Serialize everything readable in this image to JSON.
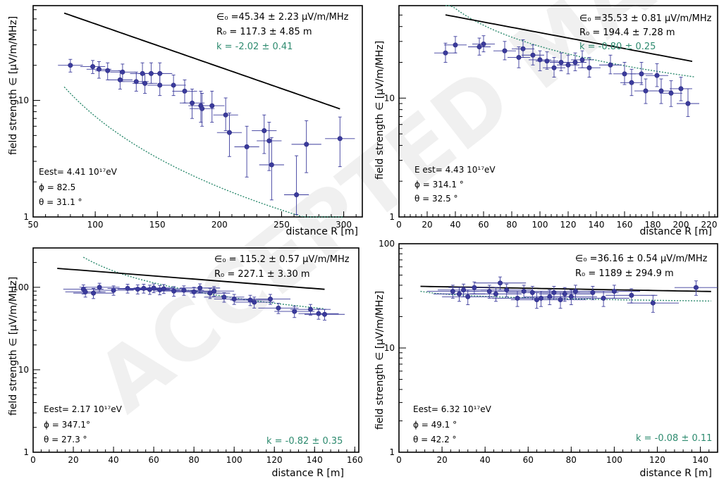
{
  "colors": {
    "points": "#3b3b9c",
    "fit": "#000000",
    "alt_fit": "#2e8b6f",
    "k_text": "#2e8b6f"
  },
  "watermark": "ACCEPTED MANUSCRIPT",
  "chart_data": [
    {
      "type": "scatter",
      "xlabel": "distance R [m]",
      "ylabel": "field strength  ∈ [µV/m/MHz]",
      "xlim": [
        50,
        315
      ],
      "ylim": [
        1,
        65
      ],
      "y_scale": "log",
      "xticks": [
        50,
        100,
        150,
        200,
        250,
        300
      ],
      "yticks": [
        1,
        10
      ],
      "legend": "none",
      "annotations": {
        "eps": "∈₀ =45.34  ± 2.23 µV/m/MHz",
        "r0": "R₀ = 117.3  ± 4.85 m",
        "k": "k =  -2.02 ± 0.41",
        "energy": "Eest= 4.41 10¹⁷eV",
        "phi": "ϕ   = 82.5",
        "theta": "θ   = 31.1 °"
      },
      "points": [
        {
          "x": 80,
          "y": 20,
          "xerr": 10,
          "ylo": 2.5,
          "yhi": 2.5
        },
        {
          "x": 98,
          "y": 19.5,
          "xerr": 10,
          "ylo": 2.5,
          "yhi": 2.5
        },
        {
          "x": 103,
          "y": 18.5,
          "xerr": 10,
          "ylo": 3,
          "yhi": 3
        },
        {
          "x": 110,
          "y": 18,
          "xerr": 10,
          "ylo": 3,
          "yhi": 3
        },
        {
          "x": 122,
          "y": 17.5,
          "xerr": 10,
          "ylo": 3,
          "yhi": 3
        },
        {
          "x": 120,
          "y": 15,
          "xerr": 10,
          "ylo": 2.5,
          "yhi": 3
        },
        {
          "x": 133,
          "y": 14.5,
          "xerr": 10,
          "ylo": 2.5,
          "yhi": 3
        },
        {
          "x": 138,
          "y": 17,
          "xerr": 10,
          "ylo": 3,
          "yhi": 4
        },
        {
          "x": 140,
          "y": 14,
          "xerr": 10,
          "ylo": 2.5,
          "yhi": 3
        },
        {
          "x": 145,
          "y": 17,
          "xerr": 10,
          "ylo": 3,
          "yhi": 4
        },
        {
          "x": 152,
          "y": 17,
          "xerr": 10,
          "ylo": 3,
          "yhi": 4
        },
        {
          "x": 152,
          "y": 13.5,
          "xerr": 10,
          "ylo": 2.5,
          "yhi": 3
        },
        {
          "x": 163,
          "y": 13.5,
          "xerr": 10,
          "ylo": 2.5,
          "yhi": 3
        },
        {
          "x": 172,
          "y": 12,
          "xerr": 10,
          "ylo": 2.5,
          "yhi": 3
        },
        {
          "x": 178,
          "y": 9.5,
          "xerr": 10,
          "ylo": 2.5,
          "yhi": 3
        },
        {
          "x": 185,
          "y": 9,
          "xerr": 10,
          "ylo": 2.5,
          "yhi": 3
        },
        {
          "x": 186,
          "y": 8.5,
          "xerr": 10,
          "ylo": 2.5,
          "yhi": 3
        },
        {
          "x": 194,
          "y": 9,
          "xerr": 10,
          "ylo": 2.5,
          "yhi": 3
        },
        {
          "x": 205,
          "y": 7.5,
          "xerr": 10,
          "ylo": 2,
          "yhi": 3
        },
        {
          "x": 208,
          "y": 5.3,
          "xerr": 10,
          "ylo": 2,
          "yhi": 2.5
        },
        {
          "x": 222,
          "y": 4,
          "xerr": 10,
          "ylo": 1.8,
          "yhi": 2
        },
        {
          "x": 236,
          "y": 5.5,
          "xerr": 10,
          "ylo": 2,
          "yhi": 2
        },
        {
          "x": 240,
          "y": 4.5,
          "xerr": 10,
          "ylo": 2,
          "yhi": 2
        },
        {
          "x": 242,
          "y": 2.8,
          "xerr": 10,
          "ylo": 1.4,
          "yhi": 2
        },
        {
          "x": 262,
          "y": 1.55,
          "xerr": 10,
          "ylo": 0.5,
          "yhi": 1.8
        },
        {
          "x": 270,
          "y": 4.2,
          "xerr": 12,
          "ylo": 1.8,
          "yhi": 2.5
        },
        {
          "x": 297,
          "y": 4.7,
          "xerr": 12,
          "ylo": 2,
          "yhi": 2.5
        }
      ],
      "fit": {
        "eps0": 45.34,
        "r0": 117.3,
        "x_from": 75,
        "x_to": 297
      },
      "alt_fit": {
        "a": 80000,
        "k": -2.02,
        "x_from": 75,
        "x_to": 300
      }
    },
    {
      "type": "scatter",
      "xlabel": "distance R [m]",
      "ylabel": "field strength  ∈ [µV/m/MHz]",
      "xlim": [
        0,
        226
      ],
      "ylim": [
        1,
        60
      ],
      "y_scale": "log",
      "xticks": [
        0,
        20,
        40,
        60,
        80,
        100,
        120,
        140,
        160,
        180,
        200,
        220
      ],
      "yticks": [
        1,
        10
      ],
      "legend": "none",
      "annotations": {
        "eps": "∈₀ =35.53  ± 0.81 µV/m/MHz",
        "r0": "R₀ = 194.4  ± 7.28 m",
        "k": "k =  -0.80 ± 0.25",
        "energy": "E est= 4.43 10¹⁷eV",
        "phi": "ϕ   = 314.1 °",
        "theta": "θ   = 32.5 °"
      },
      "points": [
        {
          "x": 33,
          "y": 24,
          "xerr": 8,
          "ylo": 4,
          "yhi": 5
        },
        {
          "x": 40,
          "y": 28,
          "xerr": 8,
          "ylo": 4,
          "yhi": 5
        },
        {
          "x": 57,
          "y": 27,
          "xerr": 8,
          "ylo": 4,
          "yhi": 5
        },
        {
          "x": 60,
          "y": 28.5,
          "xerr": 8,
          "ylo": 4,
          "yhi": 5
        },
        {
          "x": 75,
          "y": 25,
          "xerr": 8,
          "ylo": 4,
          "yhi": 5
        },
        {
          "x": 85,
          "y": 22,
          "xerr": 8,
          "ylo": 4,
          "yhi": 5
        },
        {
          "x": 88,
          "y": 26,
          "xerr": 8,
          "ylo": 4,
          "yhi": 5
        },
        {
          "x": 95,
          "y": 23,
          "xerr": 8,
          "ylo": 4,
          "yhi": 5
        },
        {
          "x": 100,
          "y": 21,
          "xerr": 8,
          "ylo": 4,
          "yhi": 4
        },
        {
          "x": 105,
          "y": 20.5,
          "xerr": 8,
          "ylo": 3,
          "yhi": 4
        },
        {
          "x": 110,
          "y": 18,
          "xerr": 8,
          "ylo": 3,
          "yhi": 4
        },
        {
          "x": 115,
          "y": 20,
          "xerr": 8,
          "ylo": 3,
          "yhi": 4
        },
        {
          "x": 120,
          "y": 19,
          "xerr": 8,
          "ylo": 3,
          "yhi": 4
        },
        {
          "x": 125,
          "y": 20,
          "xerr": 8,
          "ylo": 3,
          "yhi": 4
        },
        {
          "x": 130,
          "y": 21,
          "xerr": 8,
          "ylo": 3,
          "yhi": 4
        },
        {
          "x": 135,
          "y": 18,
          "xerr": 8,
          "ylo": 3,
          "yhi": 4
        },
        {
          "x": 150,
          "y": 19,
          "xerr": 8,
          "ylo": 3,
          "yhi": 4
        },
        {
          "x": 160,
          "y": 16,
          "xerr": 8,
          "ylo": 3,
          "yhi": 4
        },
        {
          "x": 165,
          "y": 13.5,
          "xerr": 8,
          "ylo": 3,
          "yhi": 4
        },
        {
          "x": 172,
          "y": 16,
          "xerr": 8,
          "ylo": 3,
          "yhi": 4
        },
        {
          "x": 175,
          "y": 11.5,
          "xerr": 8,
          "ylo": 2.5,
          "yhi": 3
        },
        {
          "x": 183,
          "y": 15.5,
          "xerr": 8,
          "ylo": 3,
          "yhi": 4
        },
        {
          "x": 186,
          "y": 11.5,
          "xerr": 8,
          "ylo": 2.5,
          "yhi": 3
        },
        {
          "x": 193,
          "y": 11,
          "xerr": 8,
          "ylo": 2.5,
          "yhi": 3
        },
        {
          "x": 200,
          "y": 12,
          "xerr": 8,
          "ylo": 2.5,
          "yhi": 3
        },
        {
          "x": 205,
          "y": 9,
          "xerr": 8,
          "ylo": 2,
          "yhi": 3
        }
      ],
      "fit": {
        "eps0": 35.53,
        "r0": 194.4,
        "x_from": 33,
        "x_to": 208
      },
      "alt_fit": {
        "a": 1085,
        "k": -0.8,
        "x_from": 33,
        "x_to": 210
      }
    },
    {
      "type": "scatter",
      "xlabel": "distance R [m]",
      "ylabel": "field strength  ∈ [µV/m/MHz]",
      "xlim": [
        0,
        162
      ],
      "ylim": [
        1,
        300
      ],
      "y_scale": "log",
      "xticks": [
        0,
        20,
        40,
        60,
        80,
        100,
        120,
        140,
        160
      ],
      "yticks": [
        1,
        10,
        100
      ],
      "legend": "none",
      "annotations": {
        "eps": "∈₀ = 115.2  ± 0.57 µV/m/MHz",
        "r0": "R₀ = 227.1  ± 3.30 m",
        "k": "k =  -0.82 ± 0.35",
        "energy": "Eest= 2.17 10¹⁷eV",
        "phi": "ϕ   = 347.1°",
        "theta": "θ   = 27.3 °"
      },
      "points": [
        {
          "x": 25,
          "y": 95,
          "xerr": 10,
          "ylo": 12,
          "yhi": 12
        },
        {
          "x": 26,
          "y": 88,
          "xerr": 10,
          "ylo": 12,
          "yhi": 12
        },
        {
          "x": 30,
          "y": 85,
          "xerr": 10,
          "ylo": 12,
          "yhi": 12
        },
        {
          "x": 33,
          "y": 100,
          "xerr": 10,
          "ylo": 12,
          "yhi": 12
        },
        {
          "x": 40,
          "y": 92,
          "xerr": 10,
          "ylo": 12,
          "yhi": 12
        },
        {
          "x": 47,
          "y": 97,
          "xerr": 10,
          "ylo": 12,
          "yhi": 12
        },
        {
          "x": 52,
          "y": 95,
          "xerr": 10,
          "ylo": 12,
          "yhi": 12
        },
        {
          "x": 55,
          "y": 97,
          "xerr": 10,
          "ylo": 12,
          "yhi": 12
        },
        {
          "x": 58,
          "y": 94,
          "xerr": 10,
          "ylo": 12,
          "yhi": 12
        },
        {
          "x": 60,
          "y": 98,
          "xerr": 10,
          "ylo": 12,
          "yhi": 12
        },
        {
          "x": 63,
          "y": 93,
          "xerr": 10,
          "ylo": 12,
          "yhi": 12
        },
        {
          "x": 65,
          "y": 96,
          "xerr": 10,
          "ylo": 12,
          "yhi": 12
        },
        {
          "x": 70,
          "y": 90,
          "xerr": 10,
          "ylo": 12,
          "yhi": 12
        },
        {
          "x": 75,
          "y": 92,
          "xerr": 10,
          "ylo": 12,
          "yhi": 12
        },
        {
          "x": 80,
          "y": 88,
          "xerr": 10,
          "ylo": 12,
          "yhi": 12
        },
        {
          "x": 83,
          "y": 98,
          "xerr": 10,
          "ylo": 12,
          "yhi": 12
        },
        {
          "x": 88,
          "y": 85,
          "xerr": 10,
          "ylo": 12,
          "yhi": 12
        },
        {
          "x": 90,
          "y": 90,
          "xerr": 10,
          "ylo": 12,
          "yhi": 12
        },
        {
          "x": 95,
          "y": 76,
          "xerr": 10,
          "ylo": 10,
          "yhi": 10
        },
        {
          "x": 100,
          "y": 72,
          "xerr": 10,
          "ylo": 10,
          "yhi": 10
        },
        {
          "x": 108,
          "y": 70,
          "xerr": 10,
          "ylo": 10,
          "yhi": 10
        },
        {
          "x": 110,
          "y": 66,
          "xerr": 10,
          "ylo": 10,
          "yhi": 10
        },
        {
          "x": 118,
          "y": 72,
          "xerr": 10,
          "ylo": 10,
          "yhi": 10
        },
        {
          "x": 122,
          "y": 56,
          "xerr": 10,
          "ylo": 8,
          "yhi": 8
        },
        {
          "x": 130,
          "y": 51,
          "xerr": 10,
          "ylo": 8,
          "yhi": 8
        },
        {
          "x": 138,
          "y": 54,
          "xerr": 10,
          "ylo": 8,
          "yhi": 8
        },
        {
          "x": 142,
          "y": 48,
          "xerr": 10,
          "ylo": 7,
          "yhi": 7
        },
        {
          "x": 145,
          "y": 47,
          "xerr": 10,
          "ylo": 7,
          "yhi": 7
        }
      ],
      "fit": {
        "eps0": 115.2,
        "r0": 227.1,
        "x_from": 12,
        "x_to": 145
      },
      "alt_fit": {
        "a": 3250,
        "k": -0.82,
        "x_from": 25,
        "x_to": 145
      }
    },
    {
      "type": "scatter",
      "xlabel": "distance R [m]",
      "ylabel": "field strength  ∈ [µV/m/MHz]",
      "xlim": [
        0,
        148
      ],
      "ylim": [
        1,
        100
      ],
      "y_scale": "log",
      "xticks": [
        0,
        20,
        40,
        60,
        80,
        100,
        120,
        140
      ],
      "yticks": [
        1,
        10,
        100
      ],
      "legend": "none",
      "annotations": {
        "eps": "∈₀ =36.16  ± 0.54 µV/m/MHz",
        "r0": "R₀ = 1189   ± 294.9 m",
        "k": "k =  -0.08 ± 0.11",
        "energy": "Eest= 6.32 10¹⁷eV",
        "phi": "ϕ   = 49.1 °",
        "theta": "θ   = 42.2 °"
      },
      "points": [
        {
          "x": 25,
          "y": 35,
          "xerr": 12,
          "ylo": 5,
          "yhi": 5
        },
        {
          "x": 28,
          "y": 33,
          "xerr": 12,
          "ylo": 5,
          "yhi": 5
        },
        {
          "x": 30,
          "y": 36,
          "xerr": 12,
          "ylo": 5,
          "yhi": 5
        },
        {
          "x": 32,
          "y": 31,
          "xerr": 12,
          "ylo": 5,
          "yhi": 5
        },
        {
          "x": 35,
          "y": 38,
          "xerr": 12,
          "ylo": 5,
          "yhi": 5
        },
        {
          "x": 42,
          "y": 35,
          "xerr": 12,
          "ylo": 5,
          "yhi": 5
        },
        {
          "x": 45,
          "y": 33,
          "xerr": 12,
          "ylo": 5,
          "yhi": 5
        },
        {
          "x": 47,
          "y": 42,
          "xerr": 12,
          "ylo": 6,
          "yhi": 6
        },
        {
          "x": 50,
          "y": 36,
          "xerr": 12,
          "ylo": 5,
          "yhi": 5
        },
        {
          "x": 55,
          "y": 30,
          "xerr": 12,
          "ylo": 5,
          "yhi": 5
        },
        {
          "x": 58,
          "y": 35,
          "xerr": 12,
          "ylo": 5,
          "yhi": 5
        },
        {
          "x": 62,
          "y": 34,
          "xerr": 12,
          "ylo": 5,
          "yhi": 5
        },
        {
          "x": 64,
          "y": 29,
          "xerr": 12,
          "ylo": 5,
          "yhi": 5
        },
        {
          "x": 66,
          "y": 30,
          "xerr": 12,
          "ylo": 5,
          "yhi": 5
        },
        {
          "x": 70,
          "y": 31,
          "xerr": 12,
          "ylo": 5,
          "yhi": 5
        },
        {
          "x": 72,
          "y": 34,
          "xerr": 12,
          "ylo": 5,
          "yhi": 5
        },
        {
          "x": 75,
          "y": 29,
          "xerr": 12,
          "ylo": 5,
          "yhi": 5
        },
        {
          "x": 77,
          "y": 33,
          "xerr": 12,
          "ylo": 5,
          "yhi": 5
        },
        {
          "x": 80,
          "y": 31,
          "xerr": 12,
          "ylo": 5,
          "yhi": 5
        },
        {
          "x": 82,
          "y": 35,
          "xerr": 12,
          "ylo": 5,
          "yhi": 5
        },
        {
          "x": 90,
          "y": 34,
          "xerr": 12,
          "ylo": 5,
          "yhi": 5
        },
        {
          "x": 95,
          "y": 30,
          "xerr": 12,
          "ylo": 5,
          "yhi": 5
        },
        {
          "x": 100,
          "y": 35,
          "xerr": 12,
          "ylo": 5,
          "yhi": 5
        },
        {
          "x": 108,
          "y": 32,
          "xerr": 12,
          "ylo": 5,
          "yhi": 5
        },
        {
          "x": 118,
          "y": 27,
          "xerr": 12,
          "ylo": 5,
          "yhi": 5
        },
        {
          "x": 138,
          "y": 38,
          "xerr": 10,
          "ylo": 6,
          "yhi": 6
        }
      ],
      "fit": {
        "eps0": 36.16,
        "r0": 1189,
        "x_from": 10,
        "x_to": 145
      },
      "alt_fit": {
        "a": 42,
        "k": -0.08,
        "x_from": 10,
        "x_to": 145
      }
    }
  ]
}
